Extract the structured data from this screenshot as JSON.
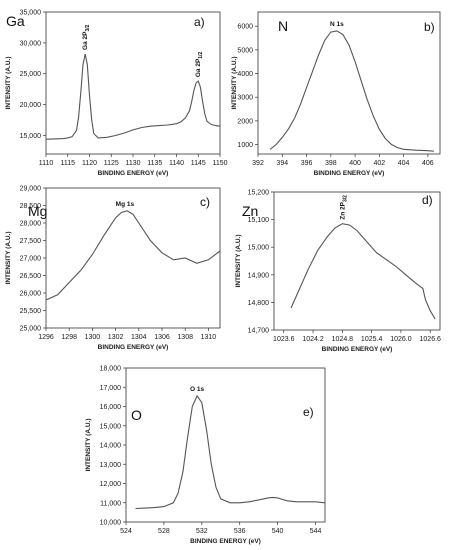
{
  "chart_data": [
    {
      "type": "line",
      "panel_label": "a)",
      "element": "Ga",
      "xlabel": "BINDING ENERGY (eV)",
      "ylabel": "INTENSITY (A.U.)",
      "xlim": [
        1110,
        1150
      ],
      "ylim": [
        12000,
        35000
      ],
      "xticks": [
        "1110",
        "1115",
        "1120",
        "1125",
        "1130",
        "1135",
        "1140",
        "1145",
        "1150"
      ],
      "yticks": [
        "15,000",
        "20,000",
        "25,000",
        "30,000",
        "35,000"
      ],
      "peak_labels": [
        {
          "main": "Ga 2P",
          "sub": "3/2",
          "x": 1119,
          "y": 28200
        },
        {
          "main": "Ga 2P",
          "sub": "1/2",
          "x": 1145,
          "y": 23800
        }
      ],
      "series": [
        {
          "x": [
            1110,
            1112,
            1114,
            1115,
            1116,
            1117,
            1117.5,
            1118,
            1118.5,
            1119,
            1119.5,
            1120,
            1120.5,
            1121,
            1122,
            1124,
            1126,
            1128,
            1130,
            1132,
            1134,
            1136,
            1138,
            1140,
            1141,
            1142,
            1143,
            1143.5,
            1144,
            1144.5,
            1145,
            1145.5,
            1146,
            1146.5,
            1147,
            1148,
            1149,
            1150
          ],
          "y": [
            14400,
            14450,
            14500,
            14600,
            14800,
            15800,
            18000,
            22000,
            26500,
            28200,
            26500,
            21500,
            17500,
            15300,
            14600,
            14700,
            15000,
            15400,
            15900,
            16300,
            16500,
            16600,
            16700,
            16900,
            17200,
            17800,
            19000,
            20500,
            22300,
            23500,
            23800,
            22800,
            20500,
            18500,
            17300,
            16800,
            16600,
            16500
          ]
        }
      ]
    },
    {
      "type": "line",
      "panel_label": "b)",
      "element": "N",
      "xlabel": "BINDING ENERGY (eV)",
      "ylabel": "INTENSITY (A.U.)",
      "xlim": [
        392,
        407
      ],
      "ylim": [
        600,
        6600
      ],
      "xticks": [
        "392",
        "394",
        "396",
        "398",
        "400",
        "402",
        "404",
        "406"
      ],
      "yticks": [
        "1000",
        "2000",
        "3000",
        "4000",
        "5000",
        "6000"
      ],
      "peak_labels": [
        {
          "main": "N 1s",
          "sub": "",
          "x": 398.5,
          "y": 5800
        }
      ],
      "series": [
        {
          "x": [
            393,
            393.5,
            394,
            394.5,
            395,
            395.5,
            396,
            396.5,
            397,
            397.5,
            398,
            398.5,
            399,
            399.5,
            400,
            400.5,
            401,
            401.5,
            402,
            402.5,
            403,
            403.5,
            404,
            405,
            406,
            406.5
          ],
          "y": [
            800,
            1000,
            1300,
            1650,
            2100,
            2700,
            3400,
            4100,
            4800,
            5400,
            5750,
            5800,
            5650,
            5200,
            4500,
            3700,
            2900,
            2200,
            1650,
            1250,
            1000,
            870,
            800,
            760,
            740,
            720
          ]
        }
      ]
    },
    {
      "type": "line",
      "panel_label": "c)",
      "element": "Mg",
      "xlabel": "BINDING ENERGY (eV)",
      "ylabel": "INTENSITY (A.U.)",
      "xlim": [
        1296,
        1311
      ],
      "ylim": [
        25000,
        29000
      ],
      "xticks": [
        "1296",
        "1298",
        "1300",
        "1302",
        "1304",
        "1306",
        "1308",
        "1310"
      ],
      "yticks": [
        "25,000",
        "25,500",
        "26,000",
        "26,500",
        "27,000",
        "27,500",
        "28,000",
        "28,500",
        "29,000"
      ],
      "peak_labels": [
        {
          "main": "Mg 1s",
          "sub": "",
          "x": 1302.8,
          "y": 28350
        }
      ],
      "series": [
        {
          "x": [
            1296,
            1297,
            1298,
            1299,
            1300,
            1301,
            1302,
            1302.5,
            1303,
            1303.5,
            1304,
            1305,
            1306,
            1307,
            1308,
            1309,
            1310,
            1311
          ],
          "y": [
            25800,
            25950,
            26300,
            26650,
            27100,
            27650,
            28150,
            28300,
            28350,
            28250,
            28000,
            27500,
            27150,
            26950,
            27000,
            26850,
            26950,
            27200
          ]
        }
      ]
    },
    {
      "type": "line",
      "panel_label": "d)",
      "element": "Zn",
      "xlabel": "BINDING ENERGY (eV)",
      "ylabel": "INTENSITY (A.U.)",
      "xlim": [
        1023.4,
        1026.8
      ],
      "ylim": [
        14700,
        15200
      ],
      "xticks": [
        "1023.6",
        "1024.2",
        "1024.8",
        "1025.4",
        "1026.0",
        "1026.6"
      ],
      "yticks": [
        "14,700",
        "14,800",
        "14,900",
        "15,000",
        "15,100",
        "15,200"
      ],
      "peak_labels": [
        {
          "main": "Zn 2P",
          "sub": "3/2",
          "x": 1024.8,
          "y": 15085
        }
      ],
      "series": [
        {
          "x": [
            1023.75,
            1023.9,
            1024.1,
            1024.3,
            1024.5,
            1024.65,
            1024.8,
            1024.95,
            1025.1,
            1025.3,
            1025.5,
            1025.7,
            1025.9,
            1026.1,
            1026.3,
            1026.45,
            1026.5,
            1026.6,
            1026.7
          ],
          "y": [
            14780,
            14840,
            14920,
            14990,
            15040,
            15070,
            15085,
            15080,
            15060,
            15020,
            14980,
            14955,
            14930,
            14900,
            14870,
            14850,
            14810,
            14770,
            14740
          ]
        }
      ]
    },
    {
      "type": "line",
      "panel_label": "e)",
      "element": "O",
      "xlabel": "BINDING ENERGY (eV)",
      "ylabel": "INTENSITY (A.U.)",
      "xlim": [
        524,
        545
      ],
      "ylim": [
        10000,
        18000
      ],
      "xticks": [
        "524",
        "528",
        "532",
        "536",
        "540",
        "544"
      ],
      "yticks": [
        "10,000",
        "11,000",
        "12,000",
        "13,000",
        "14,000",
        "15,000",
        "16,000",
        "17,000",
        "18,000"
      ],
      "peak_labels": [
        {
          "main": "O 1s",
          "sub": "",
          "x": 531.5,
          "y": 16550
        }
      ],
      "series": [
        {
          "x": [
            525,
            526,
            527,
            528,
            529,
            529.5,
            530,
            530.5,
            531,
            531.5,
            532,
            532.5,
            533,
            533.5,
            534,
            535,
            536,
            537,
            538,
            539,
            539.5,
            540,
            541,
            542,
            543,
            544,
            545
          ],
          "y": [
            10700,
            10720,
            10750,
            10800,
            11000,
            11500,
            12600,
            14400,
            16000,
            16550,
            16200,
            14800,
            13000,
            11800,
            11200,
            11000,
            11000,
            11050,
            11150,
            11250,
            11280,
            11250,
            11100,
            11050,
            11050,
            11050,
            11000
          ]
        }
      ]
    }
  ]
}
